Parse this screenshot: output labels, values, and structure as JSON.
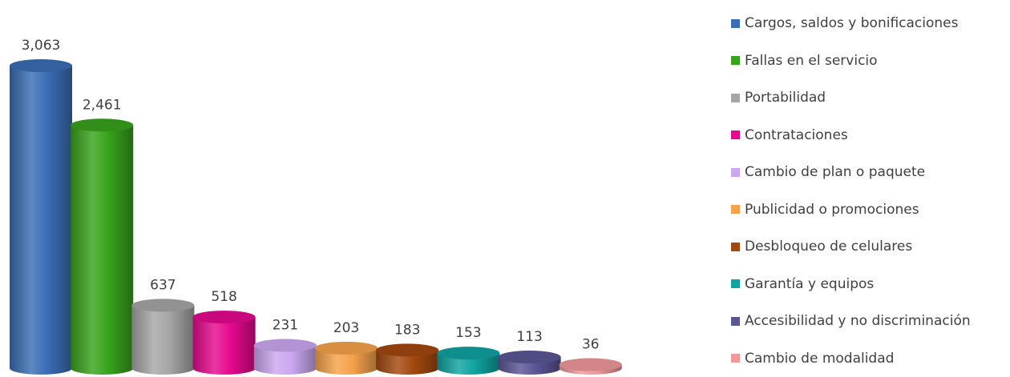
{
  "chart_data": {
    "type": "bar",
    "style": "3d-cylinder",
    "categories": [
      "Cargos, saldos y bonificaciones",
      "Fallas en el servicio",
      "Portabilidad",
      "Contrataciones",
      "Cambio de plan o paquete",
      "Publicidad o promociones",
      "Desbloqueo de celulares",
      "Garantía y equipos",
      "Accesibilidad y no discriminación",
      "Cambio de modalidad"
    ],
    "values": [
      3063,
      2461,
      637,
      518,
      231,
      203,
      183,
      153,
      113,
      36
    ],
    "value_labels": [
      "3,063",
      "2,461",
      "637",
      "518",
      "231",
      "203",
      "183",
      "153",
      "113",
      "36"
    ],
    "colors": [
      "#3a6eb5",
      "#38a31c",
      "#a6a6a6",
      "#e6098f",
      "#cba7f0",
      "#f5a24a",
      "#a3480f",
      "#10a3a0",
      "#5a5595",
      "#f0989a"
    ],
    "legend_position": "right",
    "grid": false,
    "ylim": [
      0,
      3063
    ]
  }
}
